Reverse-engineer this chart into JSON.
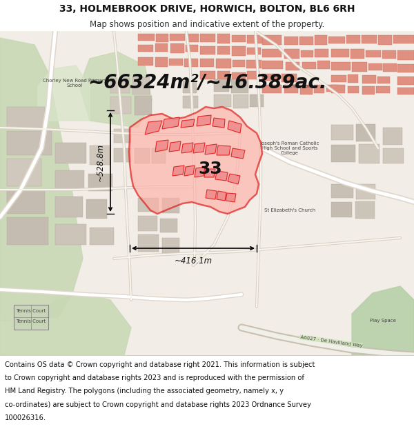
{
  "title_line1": "33, HOLMEBROOK DRIVE, HORWICH, BOLTON, BL6 6RH",
  "title_line2": "Map shows position and indicative extent of the property.",
  "area_text": "~66324m²/~16.389ac.",
  "dim_width": "~416.1m",
  "dim_height": "~528.8m",
  "label": "33",
  "footer_lines": [
    "Contains OS data © Crown copyright and database right 2021. This information is subject",
    "to Crown copyright and database rights 2023 and is reproduced with the permission of",
    "HM Land Registry. The polygons (including the associated geometry, namely x, y",
    "co-ordinates) are subject to Crown copyright and database rights 2023 Ordnance Survey",
    "100026316."
  ],
  "title_fontsize": 10,
  "subtitle_fontsize": 8.5,
  "area_fontsize": 20,
  "footer_fontsize": 7.2,
  "label_fontsize": 18,
  "fig_width": 6.0,
  "fig_height": 6.25,
  "dpi": 100,
  "map_bg": "#f2ede6",
  "road_color": "#ffffff",
  "road_outline": "#e8e0d4",
  "building_colors": [
    "#d4c8bb",
    "#ccc0b4",
    "#c8bdb0"
  ],
  "pink_building_colors": [
    "#e8a898",
    "#e09888",
    "#d89080"
  ],
  "green_colors": [
    "#c8d8b8",
    "#b8ccaa",
    "#c0d4b0"
  ],
  "property_fill": "#ffc0b8",
  "property_edge": "#dd1111",
  "property_edge_width": 1.8,
  "inner_fill": "#ee8888",
  "inner_edge": "#dd1111",
  "arrow_color": "#000000",
  "dim_fontsize": 8.5,
  "title_bg": "#ffffff",
  "footer_bg": "#ffffff"
}
